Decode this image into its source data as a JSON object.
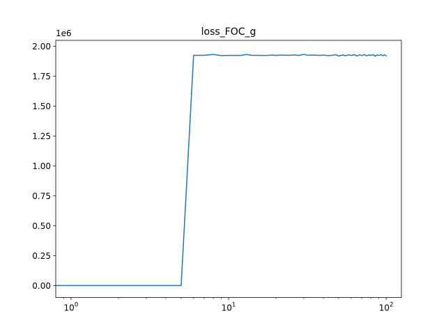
{
  "chart_data": {
    "type": "line",
    "title": "loss_FOC_g",
    "xlabel": "",
    "ylabel": "",
    "x_scale": "log",
    "y_offset_label": "1e6",
    "x_tick_labels": [
      {
        "base": "10",
        "exp": "0",
        "value": 1
      },
      {
        "base": "10",
        "exp": "1",
        "value": 10
      },
      {
        "base": "10",
        "exp": "2",
        "value": 100
      }
    ],
    "y_tick_labels": [
      "0.00",
      "0.25",
      "0.50",
      "0.75",
      "1.00",
      "1.25",
      "1.50",
      "1.75",
      "2.00"
    ],
    "y_tick_values": [
      0,
      0.25,
      0.5,
      0.75,
      1.0,
      1.25,
      1.5,
      1.75,
      2.0
    ],
    "xlim": [
      0.8,
      125
    ],
    "ylim": [
      -0.1,
      2.05
    ],
    "grid": false,
    "legend": null,
    "series": [
      {
        "color": "#1f77b4",
        "x": [
          1,
          2,
          3,
          4,
          5,
          6,
          7,
          8,
          9,
          10,
          11,
          12,
          13,
          14,
          15,
          16,
          17,
          18,
          19,
          20,
          22,
          24,
          26,
          28,
          30,
          32,
          35,
          38,
          40,
          43,
          45,
          48,
          50,
          53,
          55,
          58,
          60,
          63,
          65,
          68,
          70,
          73,
          75,
          78,
          80,
          83,
          85,
          88,
          90,
          93,
          95,
          98,
          100
        ],
        "y": [
          0,
          0,
          0,
          0,
          0,
          1.925,
          1.925,
          1.932,
          1.923,
          1.924,
          1.924,
          1.924,
          1.932,
          1.925,
          1.925,
          1.924,
          1.924,
          1.925,
          1.927,
          1.924,
          1.927,
          1.925,
          1.928,
          1.924,
          1.932,
          1.926,
          1.927,
          1.924,
          1.927,
          1.923,
          1.924,
          1.93,
          1.919,
          1.928,
          1.922,
          1.929,
          1.924,
          1.93,
          1.92,
          1.929,
          1.923,
          1.931,
          1.921,
          1.928,
          1.924,
          1.93,
          1.918,
          1.929,
          1.924,
          1.931,
          1.922,
          1.928,
          1.921
        ]
      }
    ]
  }
}
